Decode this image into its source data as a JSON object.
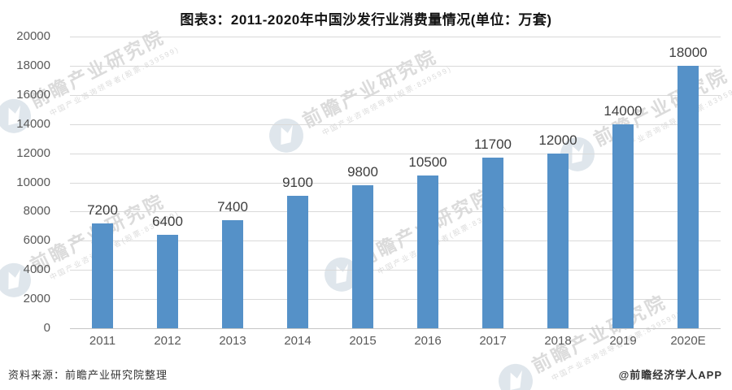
{
  "title": "图表3：2011-2020年中国沙发行业消费量情况(单位：万套)",
  "footer": {
    "source": "资料来源：前瞻产业研究院整理",
    "credit": "@前瞻经济学人APP"
  },
  "watermark": {
    "main": "前瞻产业研究院",
    "sub": "中国产业咨询领导者(股票:839599)"
  },
  "colors": {
    "bar": "#5591c8",
    "grid": "#d9d9d9",
    "axis_text": "#595959",
    "value_text": "#3d3d3d",
    "watermark": "#bebebe"
  },
  "chart_data": {
    "type": "bar",
    "title": "图表3：2011-2020年中国沙发行业消费量情况(单位：万套)",
    "unit": "万套",
    "categories": [
      "2011",
      "2012",
      "2013",
      "2014",
      "2015",
      "2016",
      "2017",
      "2018",
      "2019",
      "2020E"
    ],
    "values": [
      7200,
      6400,
      7400,
      9100,
      9800,
      10500,
      11700,
      12000,
      14000,
      18000
    ],
    "xlabel": "",
    "ylabel": "",
    "ylim": [
      0,
      20000
    ],
    "ytick_step": 2000,
    "grid": true,
    "legend": false,
    "data_labels": true
  }
}
